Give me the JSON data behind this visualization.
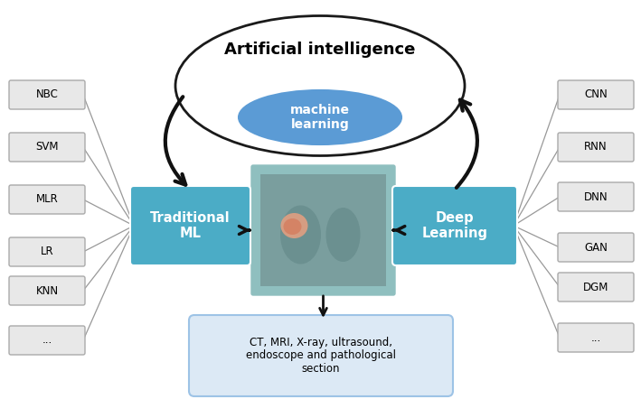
{
  "title": "Artificial intelligence",
  "ml_label": "machine\nlearning",
  "trad_ml_label": "Traditional\nML",
  "deep_learn_label": "Deep\nLearning",
  "left_boxes": [
    "NBC",
    "SVM",
    "MLR",
    "LR",
    "KNN",
    "..."
  ],
  "right_boxes": [
    "CNN",
    "RNN",
    "DNN",
    "GAN",
    "DGM",
    "..."
  ],
  "bottom_box_text": "CT, MRI, X-ray, ultrasound,\nendoscope and pathological\nsection",
  "bg_color": "#ffffff",
  "outer_ellipse_edge": "#1a1a1a",
  "inner_ellipse_color": "#5b9bd5",
  "trad_ml_color": "#4bacc6",
  "deep_learn_color": "#4bacc6",
  "left_box_face": "#e8e8e8",
  "left_box_edge": "#aaaaaa",
  "right_box_face": "#e8e8e8",
  "right_box_edge": "#aaaaaa",
  "bottom_box_face": "#dce9f5",
  "bottom_box_edge": "#9dc3e6",
  "arrow_color": "#111111",
  "line_color": "#999999",
  "ct_frame_color": "#8fbfbf",
  "ct_inner_color": "#6a9e9e",
  "tumor_color": "#e8a080",
  "figsize": [
    7.09,
    4.42
  ],
  "dpi": 100
}
